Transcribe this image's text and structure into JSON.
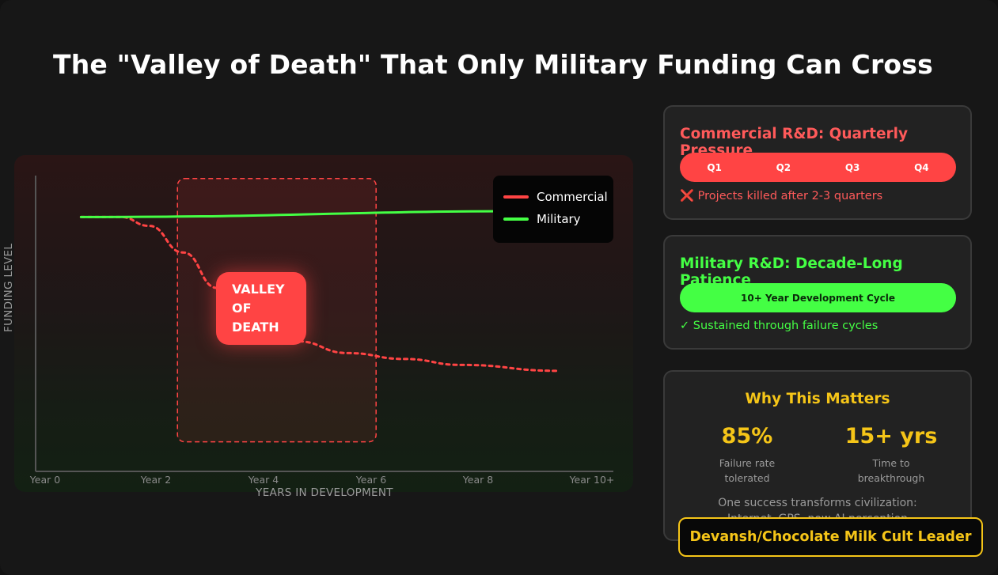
{
  "title": "The \"Valley of Death\" That Only Military Funding Can Cross",
  "chart_data": {
    "type": "line",
    "xlabel": "YEARS IN DEVELOPMENT",
    "ylabel": "FUNDING LEVEL",
    "x_ticks": [
      "Year 0",
      "Year 2",
      "Year 4",
      "Year 6",
      "Year 8",
      "Year 10+"
    ],
    "xlim": [
      0,
      10
    ],
    "ylim": [
      0,
      100
    ],
    "legend_position": "top-right",
    "series": [
      {
        "name": "Commercial",
        "color": "#ff4444",
        "style": "dashed",
        "x": [
          0.8,
          1.5,
          2.0,
          2.6,
          3.2,
          3.8,
          4.6,
          5.5,
          6.5,
          7.5,
          9.2
        ],
        "y": [
          86,
          86,
          83,
          74,
          62,
          52,
          44,
          40,
          38,
          36,
          34
        ]
      },
      {
        "name": "Military",
        "color": "#44ff44",
        "style": "solid",
        "x": [
          0.8,
          9.2
        ],
        "y": [
          86,
          88
        ]
      }
    ],
    "annotation": {
      "label_lines": [
        "VALLEY",
        "OF",
        "DEATH"
      ],
      "x_range": [
        2.5,
        6.0
      ],
      "y_range": [
        10,
        99
      ]
    }
  },
  "cards": {
    "commercial": {
      "title": "Commercial R&D: Quarterly Pressure",
      "quarters": [
        "Q1",
        "Q2",
        "Q3",
        "Q4"
      ],
      "note_icon": "❌",
      "note": "Projects killed after 2-3 quarters",
      "color": "#ff5a5a"
    },
    "military": {
      "title": "Military R&D: Decade-Long Patience",
      "bar_label": "10+ Year Development Cycle",
      "note_icon": "✓",
      "note": "Sustained through failure cycles",
      "color": "#44ff44"
    },
    "why": {
      "title": "Why This Matters",
      "stats": [
        {
          "value": "85%",
          "label_lines": [
            "Failure rate",
            "tolerated"
          ]
        },
        {
          "value": "15+ yrs",
          "label_lines": [
            "Time to",
            "breakthrough"
          ]
        }
      ],
      "footer_lines": [
        "One success transforms civilization:",
        "Internet, GPS, now AI perception"
      ],
      "color": "#f5c518"
    }
  },
  "badge": "Devansh/Chocolate Milk Cult Leader"
}
